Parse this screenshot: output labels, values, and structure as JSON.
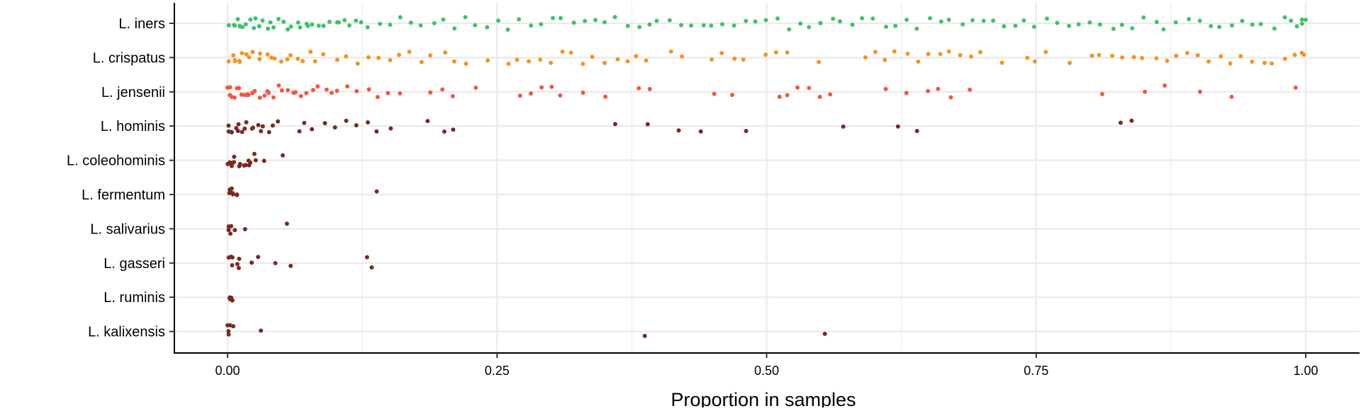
{
  "chart_data": {
    "type": "scatter",
    "style": "jitter strip plot",
    "xlabel": "Proportion in samples",
    "ylabel": "",
    "xlim": [
      -0.05,
      1.05
    ],
    "x_ticks": [
      "0.00",
      "0.25",
      "0.50",
      "0.75",
      "1.00"
    ],
    "x_tick_values": [
      0,
      0.25,
      0.5,
      0.75,
      1.0
    ],
    "grid": true,
    "legend": "none",
    "categories": [
      "L. iners",
      "L. crispatus",
      "L. jensenii",
      "L. hominis",
      "L. coleohominis",
      "L. fermentum",
      "L. salivarius",
      "L. gasseri",
      "L. ruminis",
      "L. kalixensis"
    ],
    "series": [
      {
        "category": "L. iners",
        "color": "#3fc26a",
        "points": [
          0.002,
          0.004,
          0.006,
          0.008,
          0.01,
          0.012,
          0.015,
          0.018,
          0.02,
          0.023,
          0.026,
          0.03,
          0.033,
          0.036,
          0.04,
          0.044,
          0.048,
          0.052,
          0.056,
          0.06,
          0.064,
          0.068,
          0.072,
          0.076,
          0.08,
          0.085,
          0.09,
          0.095,
          0.1,
          0.105,
          0.11,
          0.115,
          0.12,
          0.125,
          0.13,
          0.14,
          0.15,
          0.16,
          0.17,
          0.18,
          0.19,
          0.2,
          0.21,
          0.22,
          0.23,
          0.24,
          0.25,
          0.26,
          0.27,
          0.28,
          0.29,
          0.3,
          0.31,
          0.32,
          0.33,
          0.34,
          0.35,
          0.36,
          0.37,
          0.38,
          0.39,
          0.4,
          0.41,
          0.42,
          0.43,
          0.44,
          0.45,
          0.46,
          0.47,
          0.48,
          0.49,
          0.5,
          0.51,
          0.52,
          0.53,
          0.54,
          0.55,
          0.56,
          0.57,
          0.58,
          0.59,
          0.6,
          0.61,
          0.62,
          0.63,
          0.64,
          0.65,
          0.66,
          0.67,
          0.68,
          0.69,
          0.7,
          0.71,
          0.72,
          0.73,
          0.74,
          0.75,
          0.76,
          0.77,
          0.78,
          0.79,
          0.8,
          0.81,
          0.82,
          0.83,
          0.84,
          0.85,
          0.86,
          0.87,
          0.88,
          0.89,
          0.9,
          0.91,
          0.92,
          0.93,
          0.94,
          0.95,
          0.96,
          0.97,
          0.98,
          0.985,
          0.99,
          0.995,
          0.998,
          1.0
        ]
      },
      {
        "category": "L. crispatus",
        "color": "#f7931e",
        "points": [
          0.002,
          0.004,
          0.006,
          0.008,
          0.01,
          0.012,
          0.015,
          0.018,
          0.02,
          0.024,
          0.028,
          0.032,
          0.036,
          0.04,
          0.045,
          0.05,
          0.055,
          0.06,
          0.065,
          0.07,
          0.075,
          0.08,
          0.09,
          0.1,
          0.11,
          0.12,
          0.13,
          0.14,
          0.15,
          0.16,
          0.17,
          0.18,
          0.19,
          0.2,
          0.21,
          0.22,
          0.24,
          0.26,
          0.27,
          0.28,
          0.29,
          0.3,
          0.31,
          0.32,
          0.33,
          0.34,
          0.35,
          0.36,
          0.37,
          0.38,
          0.39,
          0.41,
          0.42,
          0.45,
          0.46,
          0.47,
          0.48,
          0.5,
          0.51,
          0.52,
          0.55,
          0.59,
          0.6,
          0.61,
          0.62,
          0.63,
          0.64,
          0.65,
          0.66,
          0.67,
          0.68,
          0.69,
          0.7,
          0.72,
          0.74,
          0.75,
          0.76,
          0.78,
          0.8,
          0.81,
          0.82,
          0.83,
          0.84,
          0.85,
          0.86,
          0.87,
          0.88,
          0.89,
          0.9,
          0.91,
          0.92,
          0.93,
          0.94,
          0.95,
          0.96,
          0.97,
          0.98,
          0.99,
          0.995,
          1.0
        ]
      },
      {
        "category": "L. jensenii",
        "color": "#f45540",
        "points": [
          0.001,
          0.002,
          0.003,
          0.005,
          0.007,
          0.009,
          0.011,
          0.013,
          0.015,
          0.017,
          0.019,
          0.021,
          0.024,
          0.027,
          0.03,
          0.033,
          0.036,
          0.04,
          0.044,
          0.048,
          0.052,
          0.056,
          0.06,
          0.065,
          0.07,
          0.075,
          0.08,
          0.085,
          0.09,
          0.095,
          0.1,
          0.11,
          0.12,
          0.13,
          0.14,
          0.15,
          0.16,
          0.19,
          0.2,
          0.21,
          0.23,
          0.27,
          0.28,
          0.29,
          0.3,
          0.31,
          0.33,
          0.35,
          0.38,
          0.39,
          0.45,
          0.47,
          0.51,
          0.52,
          0.53,
          0.54,
          0.55,
          0.56,
          0.61,
          0.63,
          0.65,
          0.66,
          0.67,
          0.69,
          0.81,
          0.85,
          0.87,
          0.9,
          0.93,
          0.99
        ]
      },
      {
        "category": "L. hominis",
        "color": "#7a2a1f",
        "points": [
          0.001,
          0.002,
          0.003,
          0.005,
          0.007,
          0.009,
          0.011,
          0.013,
          0.015,
          0.018,
          0.021,
          0.024,
          0.027,
          0.03,
          0.034,
          0.038,
          0.042,
          0.046,
          0.065,
          0.07,
          0.08,
          0.09,
          0.1,
          0.11,
          0.12,
          0.13,
          0.14,
          0.15,
          0.185,
          0.2,
          0.21,
          0.36,
          0.39,
          0.42,
          0.44,
          0.48,
          0.57,
          0.62,
          0.64,
          0.83,
          0.84
        ]
      },
      {
        "category": "L. coleohominis",
        "color": "#7a2a1f",
        "points": [
          0.001,
          0.002,
          0.003,
          0.004,
          0.005,
          0.006,
          0.008,
          0.01,
          0.012,
          0.014,
          0.016,
          0.018,
          0.02,
          0.022,
          0.025,
          0.028,
          0.035,
          0.05
        ]
      },
      {
        "category": "L. fermentum",
        "color": "#7a2a1f",
        "points": [
          0.001,
          0.002,
          0.003,
          0.004,
          0.005,
          0.006,
          0.008,
          0.01,
          0.138
        ]
      },
      {
        "category": "L. salivarius",
        "color": "#7a2a1f",
        "points": [
          0.001,
          0.002,
          0.003,
          0.004,
          0.005,
          0.016,
          0.055
        ]
      },
      {
        "category": "L. gasseri",
        "color": "#7a2a1f",
        "points": [
          0.001,
          0.002,
          0.003,
          0.004,
          0.006,
          0.008,
          0.01,
          0.012,
          0.022,
          0.028,
          0.043,
          0.06,
          0.13,
          0.135
        ]
      },
      {
        "category": "L. ruminis",
        "color": "#7a2a1f",
        "points": [
          0.001,
          0.002,
          0.003,
          0.004,
          0.005
        ]
      },
      {
        "category": "L. kalixensis",
        "color": "#7a2a1f",
        "points": [
          0.001,
          0.002,
          0.003,
          0.004,
          0.005,
          0.03,
          0.387,
          0.555
        ]
      }
    ]
  }
}
